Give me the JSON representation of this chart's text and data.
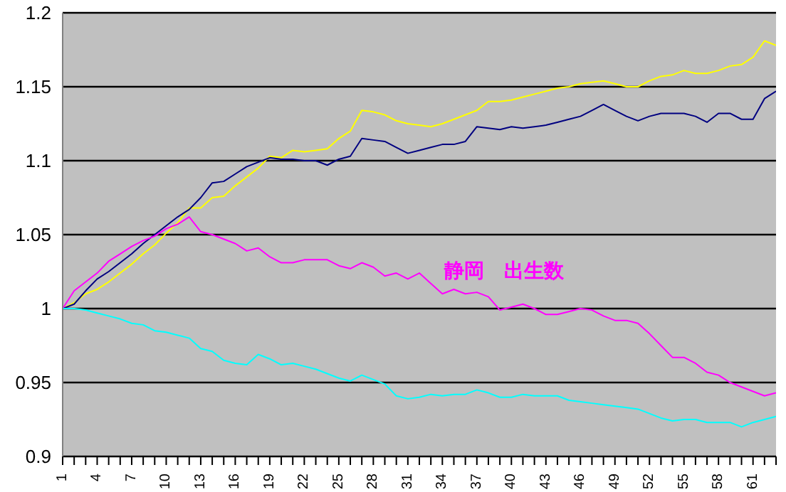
{
  "chart_data": {
    "type": "line",
    "categories": [
      "1",
      null,
      null,
      "4",
      null,
      null,
      "7",
      null,
      null,
      "10",
      null,
      null,
      "13",
      null,
      null,
      "16",
      null,
      null,
      "19",
      null,
      null,
      "22",
      null,
      null,
      "25",
      null,
      null,
      "28",
      null,
      null,
      "31",
      null,
      null,
      "34",
      null,
      null,
      "37",
      null,
      null,
      "40",
      null,
      null,
      "43",
      null,
      null,
      "46",
      null,
      null,
      "49",
      null,
      null,
      "52",
      null,
      null,
      "55",
      null,
      null,
      "58",
      null,
      null,
      "61",
      null,
      null
    ],
    "series": [
      {
        "color": "#ffff00",
        "values": [
          1.0,
          1.004,
          1.01,
          1.013,
          1.018,
          1.024,
          1.03,
          1.037,
          1.043,
          1.051,
          1.058,
          1.068,
          1.068,
          1.075,
          1.076,
          1.083,
          1.089,
          1.095,
          1.103,
          1.102,
          1.107,
          1.106,
          1.107,
          1.108,
          1.115,
          1.12,
          1.134,
          1.133,
          1.131,
          1.127,
          1.125,
          1.124,
          1.123,
          1.125,
          1.128,
          1.131,
          1.134,
          1.14,
          1.14,
          1.141,
          1.143,
          1.145,
          1.147,
          1.149,
          1.15,
          1.152,
          1.153,
          1.154,
          1.152,
          1.15,
          1.15,
          1.154,
          1.157,
          1.158,
          1.161,
          1.159,
          1.159,
          1.161,
          1.164,
          1.165,
          1.17,
          1.181,
          1.178
        ]
      },
      {
        "color": "#000080",
        "values": [
          1.0,
          1.003,
          1.012,
          1.02,
          1.025,
          1.031,
          1.037,
          1.044,
          1.05,
          1.056,
          1.062,
          1.067,
          1.075,
          1.085,
          1.086,
          1.091,
          1.096,
          1.099,
          1.102,
          1.101,
          1.101,
          1.1,
          1.1,
          1.097,
          1.101,
          1.103,
          1.115,
          1.114,
          1.113,
          1.109,
          1.105,
          1.107,
          1.109,
          1.111,
          1.111,
          1.113,
          1.123,
          1.122,
          1.121,
          1.123,
          1.122,
          1.123,
          1.124,
          1.126,
          1.128,
          1.13,
          1.134,
          1.138,
          1.134,
          1.13,
          1.127,
          1.13,
          1.132,
          1.132,
          1.132,
          1.13,
          1.126,
          1.132,
          1.132,
          1.128,
          1.128,
          1.142,
          1.147
        ]
      },
      {
        "name": "静岡　出生数",
        "color": "#ff00ff",
        "values": [
          1.0,
          1.012,
          1.018,
          1.024,
          1.032,
          1.037,
          1.042,
          1.046,
          1.049,
          1.054,
          1.057,
          1.062,
          1.052,
          1.05,
          1.047,
          1.044,
          1.039,
          1.041,
          1.035,
          1.031,
          1.031,
          1.033,
          1.033,
          1.033,
          1.029,
          1.027,
          1.031,
          1.028,
          1.022,
          1.024,
          1.02,
          1.024,
          1.017,
          1.01,
          1.013,
          1.01,
          1.011,
          1.008,
          0.999,
          1.001,
          1.003,
          1.0,
          0.996,
          0.996,
          0.998,
          1.0,
          0.999,
          0.995,
          0.992,
          0.992,
          0.99,
          0.983,
          0.975,
          0.967,
          0.967,
          0.963,
          0.957,
          0.955,
          0.95,
          0.947,
          0.944,
          0.941,
          0.943
        ]
      },
      {
        "color": "#00ffff",
        "values": [
          1.0,
          1.0,
          0.999,
          0.997,
          0.995,
          0.993,
          0.99,
          0.989,
          0.985,
          0.984,
          0.982,
          0.98,
          0.973,
          0.971,
          0.965,
          0.963,
          0.962,
          0.969,
          0.966,
          0.962,
          0.963,
          0.961,
          0.959,
          0.956,
          0.953,
          0.951,
          0.955,
          0.952,
          0.949,
          0.941,
          0.939,
          0.94,
          0.942,
          0.941,
          0.942,
          0.942,
          0.945,
          0.943,
          0.94,
          0.94,
          0.942,
          0.941,
          0.941,
          0.941,
          0.938,
          0.937,
          0.936,
          0.935,
          0.934,
          0.933,
          0.932,
          0.929,
          0.926,
          0.924,
          0.925,
          0.925,
          0.923,
          0.923,
          0.923,
          0.92,
          0.923,
          0.925,
          0.927
        ]
      }
    ],
    "ylim": [
      0.9,
      1.2
    ],
    "yticks": [
      0.9,
      0.95,
      1,
      1.05,
      1.1,
      1.15,
      1.2
    ],
    "grid": "y",
    "marker": "none",
    "line_style": "solid"
  }
}
